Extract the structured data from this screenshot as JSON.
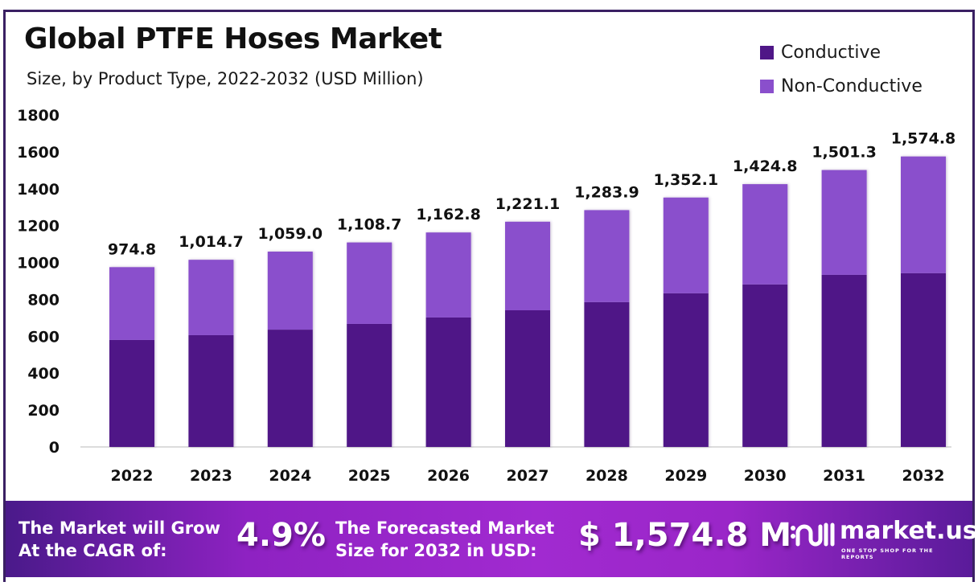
{
  "header": {
    "title": "Global PTFE Hoses Market",
    "subtitle": "Size, by Product Type, 2022-2032 (USD Million)"
  },
  "legend": [
    {
      "label": "Conductive",
      "color": "#4f1787"
    },
    {
      "label": "Non-Conductive",
      "color": "#8a4fcc"
    }
  ],
  "chart_data": {
    "type": "bar",
    "stacked": true,
    "title": "Global PTFE Hoses Market",
    "subtitle": "Size, by Product Type, 2022-2032 (USD Million)",
    "xlabel": "",
    "ylabel": "",
    "categories": [
      "2022",
      "2023",
      "2024",
      "2025",
      "2026",
      "2027",
      "2028",
      "2029",
      "2030",
      "2031",
      "2032"
    ],
    "series": [
      {
        "name": "Conductive",
        "color": "#4f1787",
        "values": [
          580,
          606,
          636,
          667,
          702,
          741,
          785,
          833,
          881,
          933,
          942
        ]
      },
      {
        "name": "Non-Conductive",
        "color": "#8a4fcc",
        "values": [
          394.8,
          408.7,
          423.0,
          441.7,
          460.8,
          480.1,
          498.9,
          519.1,
          543.8,
          568.3,
          632.8
        ]
      }
    ],
    "totals": [
      974.8,
      1014.7,
      1059.0,
      1108.7,
      1162.8,
      1221.1,
      1283.9,
      1352.1,
      1424.8,
      1501.3,
      1574.8
    ],
    "total_labels": [
      "974.8",
      "1,014.7",
      "1,059.0",
      "1,108.7",
      "1,162.8",
      "1,221.1",
      "1,283.9",
      "1,352.1",
      "1,424.8",
      "1,501.3",
      "1,574.8"
    ],
    "ylim": [
      0,
      1800
    ],
    "yticks": [
      0,
      200,
      400,
      600,
      800,
      1000,
      1200,
      1400,
      1600,
      1800
    ],
    "ytick_labels": [
      "0",
      "200",
      "400",
      "600",
      "800",
      "1000",
      "1200",
      "1400",
      "1600",
      "1800"
    ],
    "grid": false,
    "legend_position": "top-right"
  },
  "banner": {
    "cagr_text_line1": "The Market will Grow",
    "cagr_text_line2": "At the CAGR of:",
    "cagr_value": "4.9%",
    "forecast_text_line1": "The Forecasted Market",
    "forecast_text_line2": "Size for 2032 in USD:",
    "forecast_value": "$ 1,574.8 M"
  },
  "logo": {
    "name": "market.us",
    "tagline": "ONE STOP SHOP FOR THE REPORTS"
  }
}
